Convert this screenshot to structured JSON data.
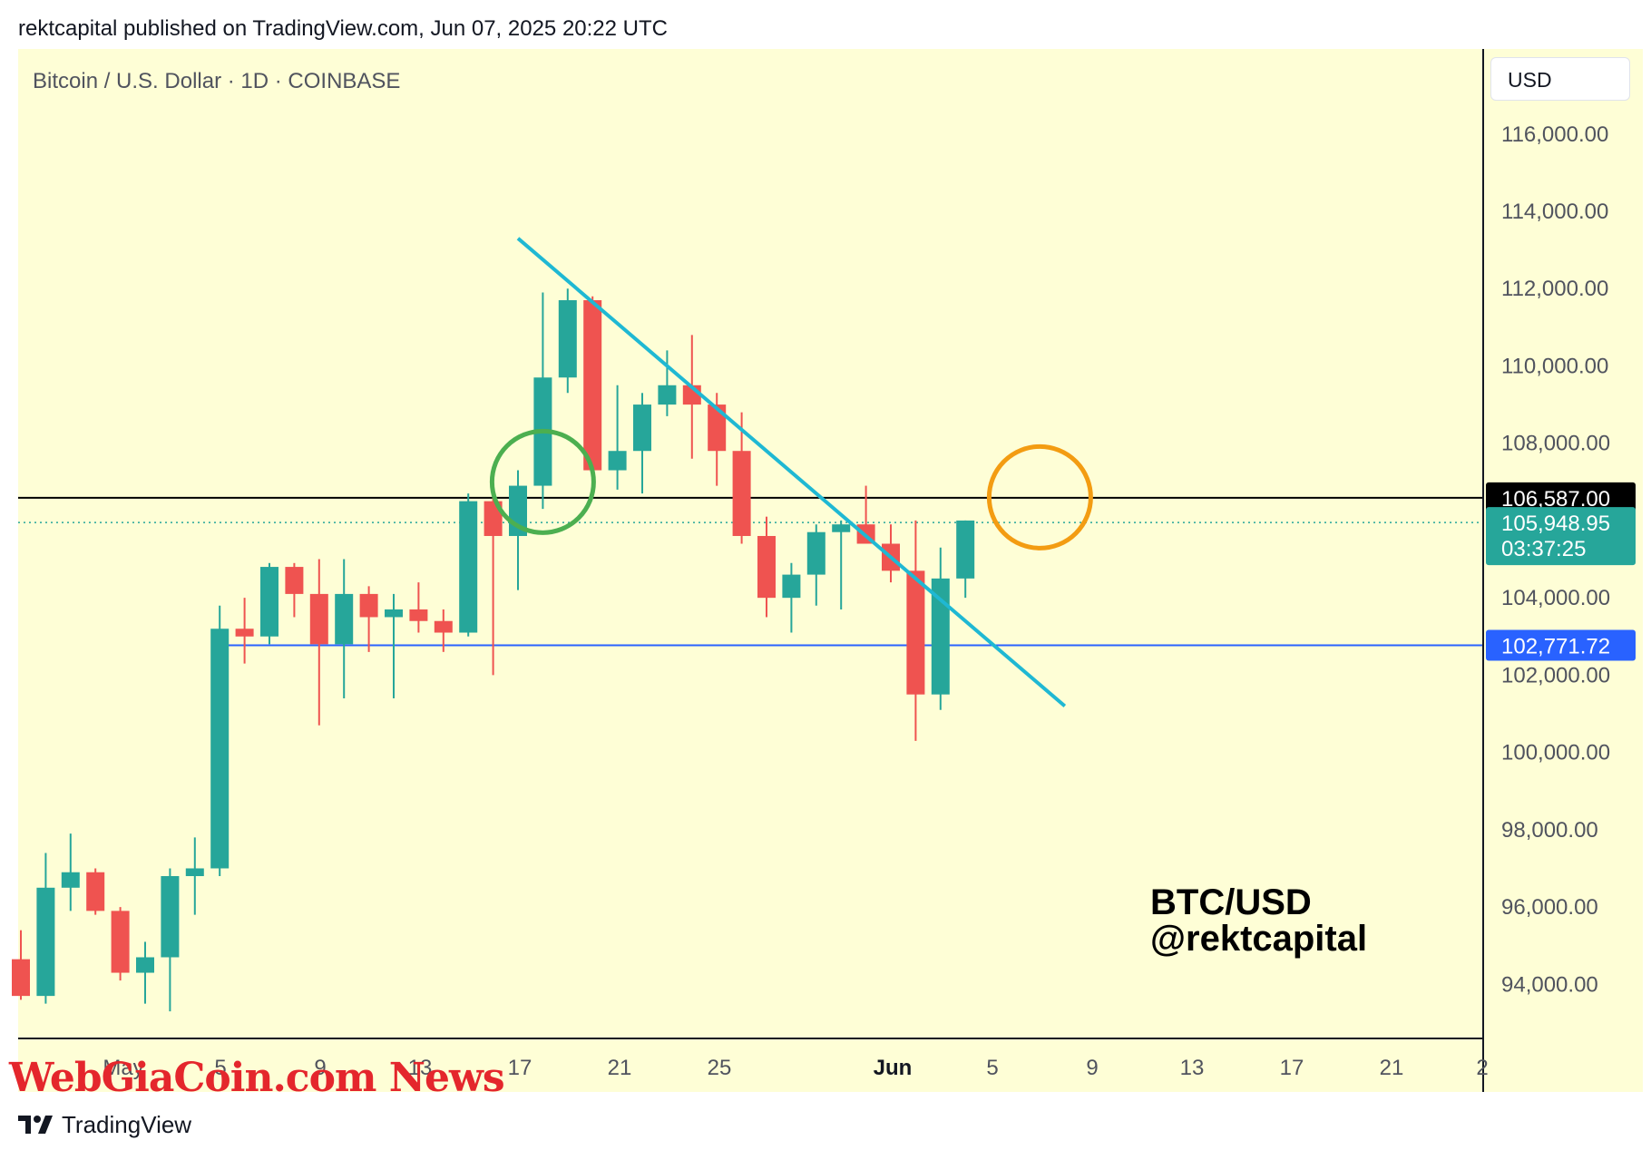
{
  "header": {
    "publisher_line": "rektcapital published on TradingView.com, Jun 07, 2025 20:22 UTC"
  },
  "symbol": {
    "title": "Bitcoin / U.S. Dollar · 1D · COINBASE"
  },
  "currency": "USD",
  "watermark": "WebGiaCoin.com News",
  "footer": {
    "brand": "TradingView"
  },
  "colors": {
    "background": "#fefed6",
    "bull": "#26a69a",
    "bear": "#ef5350",
    "trendline": "#1fb8d3",
    "support": "#2962ff",
    "resistance": "#000000",
    "circle_green": "#4caf50",
    "circle_orange": "#f39c12"
  },
  "chart_data": {
    "type": "candlestick",
    "title": "Bitcoin / U.S. Dollar · 1D · COINBASE",
    "ylim": [
      92600,
      118200
    ],
    "y_ticks": [
      "116,000.00",
      "114,000.00",
      "112,000.00",
      "110,000.00",
      "108,000.00",
      "104,000.00",
      "102,000.00",
      "100,000.00",
      "98,000.00",
      "96,000.00",
      "94,000.00"
    ],
    "x_ticks": [
      "May",
      "5",
      "9",
      "13",
      "17",
      "21",
      "25",
      "Jun",
      "5",
      "9",
      "13",
      "17",
      "21",
      "2"
    ],
    "candles": [
      {
        "date": "Apr 30",
        "o": 94650,
        "h": 95400,
        "l": 93600,
        "c": 93700
      },
      {
        "date": "May 01",
        "o": 93700,
        "h": 97400,
        "l": 93500,
        "c": 96500
      },
      {
        "date": "May 02",
        "o": 96500,
        "h": 97900,
        "l": 95900,
        "c": 96900
      },
      {
        "date": "May 03",
        "o": 96900,
        "h": 97000,
        "l": 95800,
        "c": 95900
      },
      {
        "date": "May 04",
        "o": 95900,
        "h": 96000,
        "l": 94100,
        "c": 94300
      },
      {
        "date": "May 05",
        "o": 94300,
        "h": 95100,
        "l": 93500,
        "c": 94700
      },
      {
        "date": "May 06",
        "o": 94700,
        "h": 97000,
        "l": 93300,
        "c": 96800
      },
      {
        "date": "May 07",
        "o": 96800,
        "h": 97800,
        "l": 95800,
        "c": 97000
      },
      {
        "date": "May 08",
        "o": 97000,
        "h": 103800,
        "l": 96800,
        "c": 103200
      },
      {
        "date": "May 09",
        "o": 103200,
        "h": 104000,
        "l": 102300,
        "c": 103000
      },
      {
        "date": "May 10",
        "o": 103000,
        "h": 104900,
        "l": 102800,
        "c": 104800
      },
      {
        "date": "May 11",
        "o": 104800,
        "h": 104900,
        "l": 103500,
        "c": 104100
      },
      {
        "date": "May 12",
        "o": 104100,
        "h": 105000,
        "l": 100700,
        "c": 102800
      },
      {
        "date": "May 13",
        "o": 102800,
        "h": 105000,
        "l": 101400,
        "c": 104100
      },
      {
        "date": "May 14",
        "o": 104100,
        "h": 104300,
        "l": 102600,
        "c": 103500
      },
      {
        "date": "May 15",
        "o": 103500,
        "h": 104100,
        "l": 101400,
        "c": 103700
      },
      {
        "date": "May 16",
        "o": 103700,
        "h": 104400,
        "l": 103100,
        "c": 103400
      },
      {
        "date": "May 17",
        "o": 103400,
        "h": 103700,
        "l": 102600,
        "c": 103100
      },
      {
        "date": "May 18",
        "o": 103100,
        "h": 106700,
        "l": 103000,
        "c": 106500
      },
      {
        "date": "May 19",
        "o": 106500,
        "h": 107100,
        "l": 102000,
        "c": 105600
      },
      {
        "date": "May 20",
        "o": 105600,
        "h": 107300,
        "l": 104200,
        "c": 106900
      },
      {
        "date": "May 21",
        "o": 106900,
        "h": 111900,
        "l": 106300,
        "c": 109700
      },
      {
        "date": "May 22",
        "o": 109700,
        "h": 112000,
        "l": 109300,
        "c": 111700
      },
      {
        "date": "May 23",
        "o": 111700,
        "h": 111800,
        "l": 106600,
        "c": 107300
      },
      {
        "date": "May 24",
        "o": 107300,
        "h": 109500,
        "l": 106800,
        "c": 107800
      },
      {
        "date": "May 25",
        "o": 107800,
        "h": 109300,
        "l": 106700,
        "c": 109000
      },
      {
        "date": "May 26",
        "o": 109000,
        "h": 110400,
        "l": 108700,
        "c": 109500
      },
      {
        "date": "May 27",
        "o": 109500,
        "h": 110800,
        "l": 107600,
        "c": 109000
      },
      {
        "date": "May 28",
        "o": 109000,
        "h": 109300,
        "l": 106900,
        "c": 107800
      },
      {
        "date": "May 29",
        "o": 107800,
        "h": 108800,
        "l": 105400,
        "c": 105600
      },
      {
        "date": "May 30",
        "o": 105600,
        "h": 106100,
        "l": 103500,
        "c": 104000
      },
      {
        "date": "May 31",
        "o": 104000,
        "h": 104900,
        "l": 103100,
        "c": 104600
      },
      {
        "date": "Jun 01",
        "o": 104600,
        "h": 105900,
        "l": 103800,
        "c": 105700
      },
      {
        "date": "Jun 02",
        "o": 105700,
        "h": 106000,
        "l": 103700,
        "c": 105900
      },
      {
        "date": "Jun 03",
        "o": 105900,
        "h": 106900,
        "l": 105400,
        "c": 105400
      },
      {
        "date": "Jun 04",
        "o": 105400,
        "h": 105900,
        "l": 104400,
        "c": 104700
      },
      {
        "date": "Jun 05",
        "o": 104700,
        "h": 106000,
        "l": 100300,
        "c": 101500
      },
      {
        "date": "Jun 06",
        "o": 101500,
        "h": 105300,
        "l": 101100,
        "c": 104500
      },
      {
        "date": "Jun 07",
        "o": 104500,
        "h": 106000,
        "l": 104000,
        "c": 106000
      }
    ],
    "horizontal_lines": [
      {
        "name": "resistance",
        "value": 106587,
        "label": "106,587.00"
      },
      {
        "name": "support",
        "value": 102771.72,
        "label": "102,771.72"
      }
    ],
    "last_price": {
      "value": 105948.95,
      "label": "105,948.95",
      "countdown": "03:37:25"
    },
    "trendline": {
      "from": {
        "date": "May 20",
        "price": 113300
      },
      "to": {
        "date": "Jun 11",
        "price": 101200
      }
    },
    "circles": [
      {
        "name": "green",
        "date": "May 21",
        "price": 107000
      },
      {
        "name": "orange",
        "date": "Jun 10",
        "price": 106600
      }
    ],
    "annotation": [
      "BTC/USD",
      "@rektcapital"
    ]
  }
}
